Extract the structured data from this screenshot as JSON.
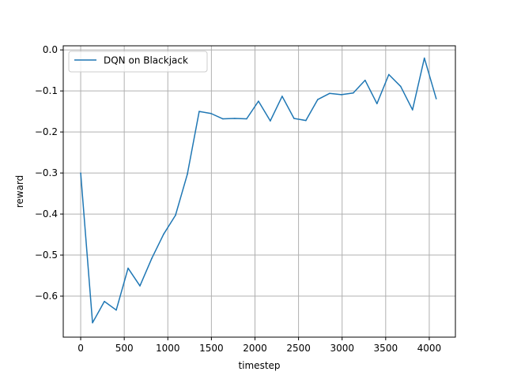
{
  "chart_data": {
    "type": "line",
    "title": "",
    "xlabel": "timestep",
    "ylabel": "reward",
    "xlim": [
      -200,
      4300
    ],
    "ylim": [
      -0.7,
      0.01
    ],
    "xticks": [
      0,
      500,
      1000,
      1500,
      2000,
      2500,
      3000,
      3500,
      4000
    ],
    "xtick_labels": [
      "0",
      "500",
      "1000",
      "1500",
      "2000",
      "2500",
      "3000",
      "3500",
      "4000"
    ],
    "yticks": [
      0.0,
      -0.1,
      -0.2,
      -0.3,
      -0.4,
      -0.5,
      -0.6
    ],
    "ytick_labels": [
      "0.0",
      "−0.1",
      "−0.2",
      "−0.3",
      "−0.4",
      "−0.5",
      "−0.6"
    ],
    "grid": true,
    "legend_position": "top-left",
    "series": [
      {
        "name": "DQN on Blackjack",
        "color": "#1f77b4",
        "x": [
          0,
          136,
          272,
          408,
          544,
          680,
          816,
          952,
          1088,
          1224,
          1360,
          1496,
          1632,
          1768,
          1904,
          2040,
          2176,
          2312,
          2448,
          2584,
          2720,
          2856,
          2992,
          3128,
          3264,
          3400,
          3536,
          3672,
          3808,
          3944,
          4080
        ],
        "y": [
          -0.3,
          -0.665,
          -0.613,
          -0.634,
          -0.532,
          -0.575,
          -0.508,
          -0.449,
          -0.403,
          -0.303,
          -0.15,
          -0.155,
          -0.168,
          -0.167,
          -0.168,
          -0.125,
          -0.173,
          -0.113,
          -0.167,
          -0.172,
          -0.121,
          -0.106,
          -0.109,
          -0.105,
          -0.074,
          -0.131,
          -0.06,
          -0.089,
          -0.146,
          -0.02,
          -0.119
        ]
      }
    ]
  }
}
